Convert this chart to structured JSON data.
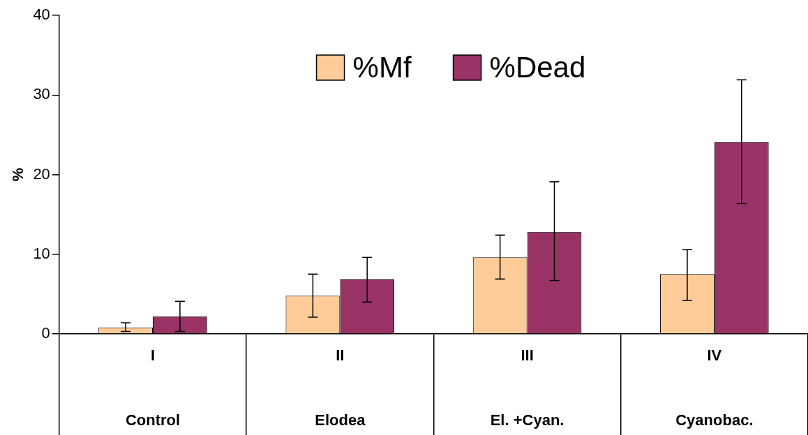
{
  "chart_data": {
    "type": "bar",
    "ylabel": "%",
    "categories": [
      "I\nControl",
      "II\nElodea",
      "III\nEl. +Cyan.",
      "IV\nCyanobac."
    ],
    "series": [
      {
        "name": "%Mf",
        "color": "#ffcc99",
        "values": [
          0.8,
          4.8,
          9.6,
          7.5
        ],
        "errors": [
          [
            0.3,
            1.4
          ],
          [
            2.1,
            7.5
          ],
          [
            6.9,
            12.4
          ],
          [
            4.2,
            10.6
          ]
        ]
      },
      {
        "name": "%Dead",
        "color": "#993366",
        "values": [
          2.2,
          6.9,
          12.8,
          24.1
        ],
        "errors": [
          [
            0.3,
            4.1
          ],
          [
            4.0,
            9.6
          ],
          [
            6.7,
            19.1
          ],
          [
            16.4,
            31.9
          ]
        ]
      }
    ],
    "ylim": [
      0,
      40
    ],
    "yticks": [
      0,
      10,
      20,
      30,
      40
    ],
    "grid": false,
    "legend": "top"
  }
}
